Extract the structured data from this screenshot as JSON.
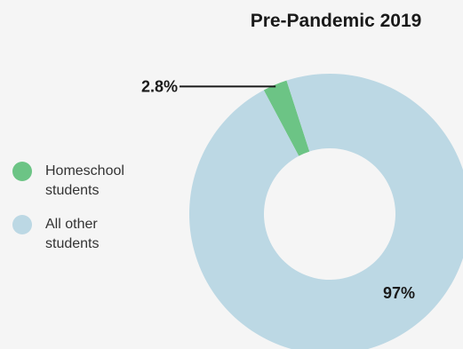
{
  "chart_data": {
    "type": "pie",
    "title": "Pre-Pandemic 2019",
    "categories": [
      "Homeschool students",
      "All other students"
    ],
    "values": [
      2.8,
      97
    ],
    "labels": [
      "2.8%",
      "97%"
    ],
    "colors": [
      "#6cc485",
      "#bcd8e4"
    ],
    "donut": true,
    "legend": "left"
  },
  "legend": {
    "items": [
      {
        "label_line1": "Homeschool",
        "label_line2": "students",
        "color": "#6cc485"
      },
      {
        "label_line1": "All other",
        "label_line2": "students",
        "color": "#bcd8e4"
      }
    ]
  }
}
